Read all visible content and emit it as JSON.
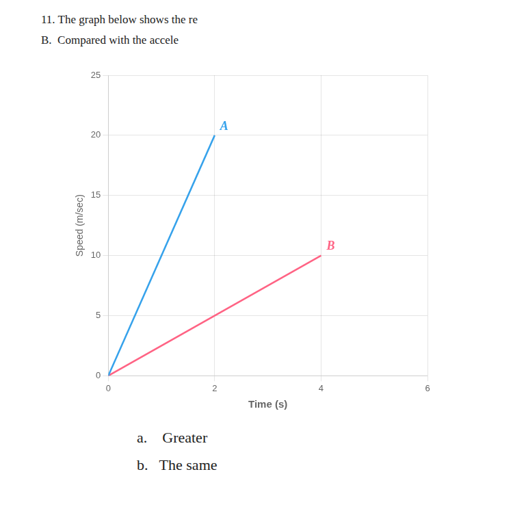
{
  "chart_data": {
    "type": "line",
    "title": "11. The graph below shows the re",
    "subtitle": "B.  Compared with the accele",
    "annotations": [
      "a.    Greater",
      "b.   The same"
    ],
    "x_label": "Time (s)",
    "y_label": "Speed (m/sec)",
    "xlim": [
      0,
      6
    ],
    "ylim": [
      0,
      25
    ],
    "xticks": [
      0,
      2,
      4,
      6
    ],
    "yticks": [
      0,
      5,
      10,
      15,
      20,
      25
    ],
    "grid": true,
    "series": [
      {
        "name": "A",
        "x": [
          0,
          2
        ],
        "values": [
          0,
          20
        ]
      },
      {
        "name": "B",
        "x": [
          0,
          4
        ],
        "values": [
          0,
          10
        ]
      }
    ]
  }
}
